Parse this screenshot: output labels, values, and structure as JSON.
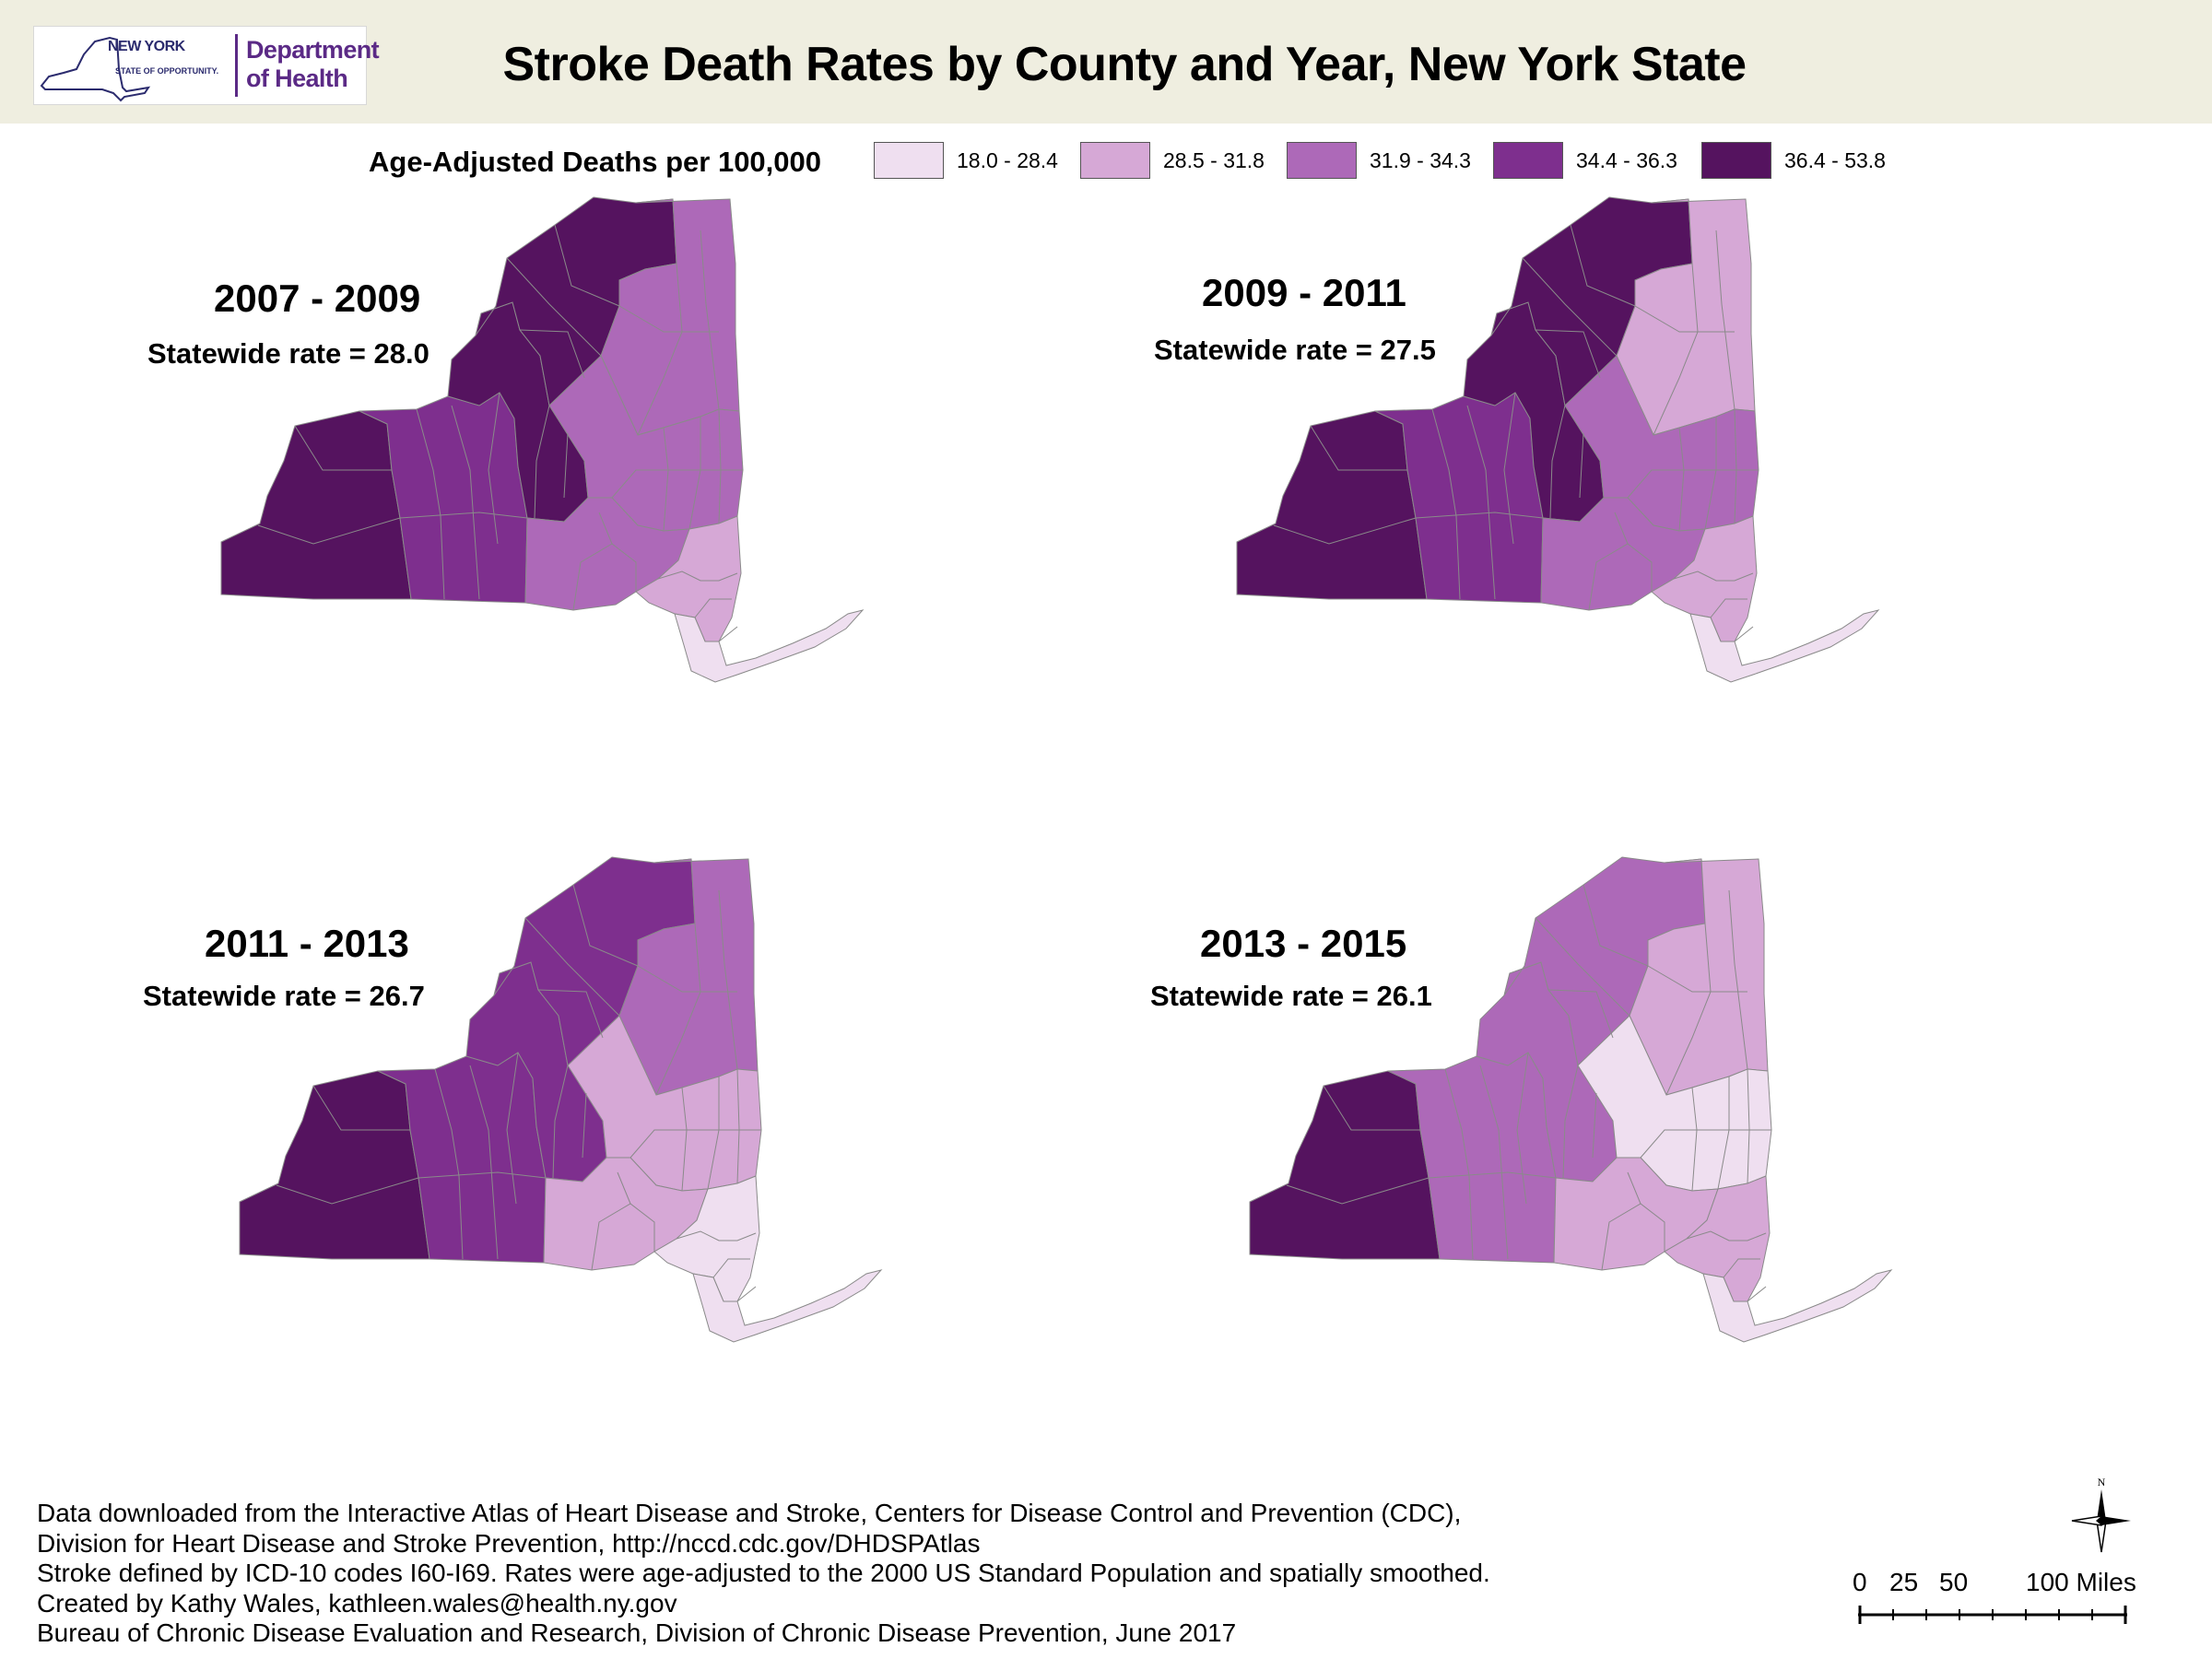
{
  "header": {
    "logo": {
      "state_name": "NEW YORK",
      "state_tagline": "STATE OF OPPORTUNITY.",
      "department_line1": "Department",
      "department_line2": "of Health"
    },
    "title": "Stroke Death Rates by County and Year, New York State"
  },
  "legend": {
    "title": "Age-Adjusted Deaths per 100,000",
    "classes": [
      {
        "label": "18.0 - 28.4",
        "color": "#efdff0"
      },
      {
        "label": "28.5 - 31.8",
        "color": "#d6a8d6"
      },
      {
        "label": "31.9 - 34.3",
        "color": "#ad69b8"
      },
      {
        "label": "34.4 - 36.3",
        "color": "#7e2f8e"
      },
      {
        "label": "36.4 - 53.8",
        "color": "#55135f"
      }
    ]
  },
  "maps": [
    {
      "years": "2007 - 2009",
      "statewide_rate": "Statewide rate = 28.0",
      "zone_classes": {
        "west": 4,
        "finger_lakes": 3,
        "central": 4,
        "north_country": 4,
        "adirondack_east": 2,
        "capital": 2,
        "southern_tier_east": 2,
        "hudson_valley": 1,
        "long_island_nyc": 0
      }
    },
    {
      "years": "2009 - 2011",
      "statewide_rate": "Statewide rate = 27.5",
      "zone_classes": {
        "west": 4,
        "finger_lakes": 3,
        "central": 4,
        "north_country": 4,
        "adirondack_east": 1,
        "capital": 2,
        "southern_tier_east": 2,
        "hudson_valley": 1,
        "long_island_nyc": 0
      }
    },
    {
      "years": "2011 - 2013",
      "statewide_rate": "Statewide rate = 26.7",
      "zone_classes": {
        "west": 4,
        "finger_lakes": 3,
        "central": 3,
        "north_country": 3,
        "adirondack_east": 2,
        "capital": 1,
        "southern_tier_east": 1,
        "hudson_valley": 0,
        "long_island_nyc": 0
      }
    },
    {
      "years": "2013 - 2015",
      "statewide_rate": "Statewide rate = 26.1",
      "zone_classes": {
        "west": 4,
        "finger_lakes": 2,
        "central": 2,
        "north_country": 2,
        "adirondack_east": 1,
        "capital": 0,
        "southern_tier_east": 1,
        "hudson_valley": 1,
        "long_island_nyc": 0
      }
    }
  ],
  "footnotes": [
    "Data downloaded from the Interactive Atlas of Heart Disease and Stroke, Centers for Disease Control and Prevention (CDC),",
    "Division for Heart Disease and Stroke Prevention, http://nccd.cdc.gov/DHDSPAtlas",
    "Stroke defined by ICD-10 codes I60-I69. Rates were age-adjusted to the 2000 US Standard Population and spatially smoothed.",
    "Created by Kathy Wales, kathleen.wales@health.ny.gov",
    "Bureau of Chronic Disease Evaluation and Research, Division of Chronic Disease Prevention, June 2017"
  ],
  "north_arrow": {
    "label": "N",
    "icon": "compass-rose-icon"
  },
  "scale_bar": {
    "labels": [
      "0",
      "25",
      "50",
      "100 Miles"
    ]
  }
}
